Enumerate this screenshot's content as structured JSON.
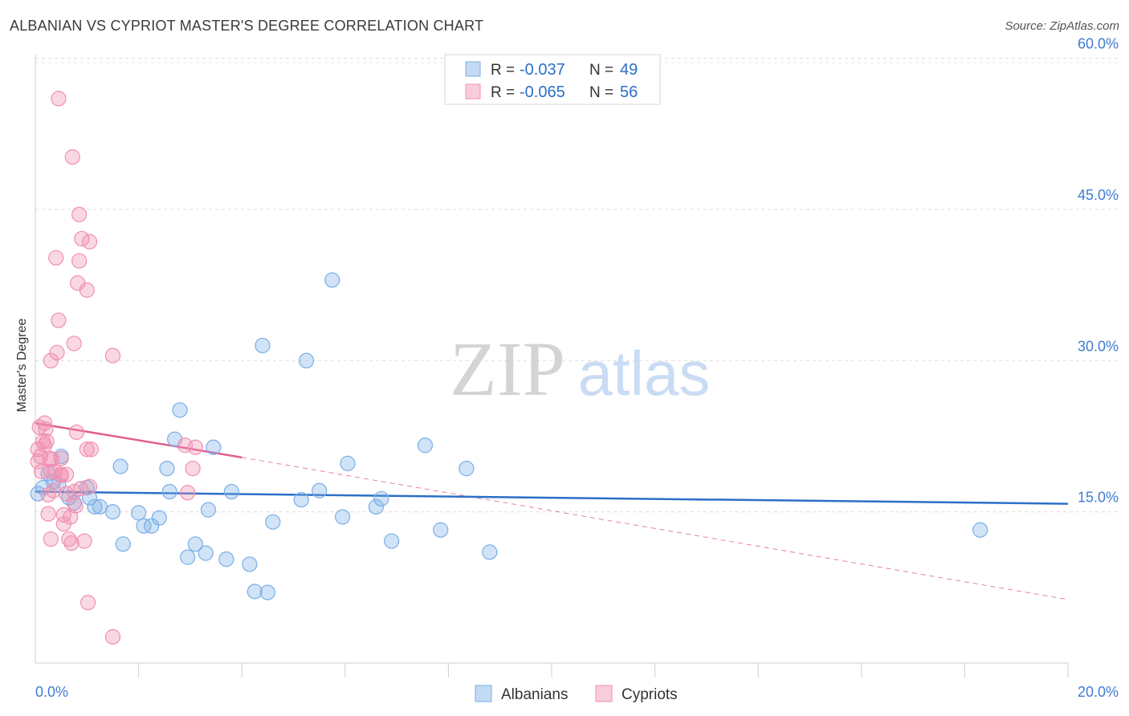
{
  "title": "ALBANIAN VS CYPRIOT MASTER'S DEGREE CORRELATION CHART",
  "source": "Source: ZipAtlas.com",
  "watermark": {
    "zip": "ZIP",
    "atlas": "atlas"
  },
  "chart_data": {
    "type": "scatter",
    "title": "ALBANIAN VS CYPRIOT MASTER'S DEGREE CORRELATION CHART",
    "xlabel": "",
    "ylabel": "Master's Degree",
    "xlim": [
      0,
      20
    ],
    "ylim": [
      0,
      61
    ],
    "x_tick_labels": [
      {
        "value": 0,
        "label": "0.0%"
      },
      {
        "value": 20,
        "label": "20.0%"
      }
    ],
    "y_tick_labels": [
      {
        "value": 15,
        "label": "15.0%"
      },
      {
        "value": 30,
        "label": "30.0%"
      },
      {
        "value": 45,
        "label": "45.0%"
      },
      {
        "value": 60,
        "label": "60.0%"
      }
    ],
    "grid": true,
    "legend_position": "top-center",
    "stats": [
      {
        "r_label": "R =",
        "r": "-0.037",
        "n_label": "N =",
        "n": "49"
      },
      {
        "r_label": "R =",
        "r": "-0.065",
        "n_label": "N =",
        "n": "56"
      }
    ],
    "series": [
      {
        "name": "Albanians",
        "color": "#7aaee6",
        "line_color": "#2b6fc7",
        "trend": {
          "x0": 0.0,
          "y0": 17.0,
          "x1": 20.0,
          "y1": 15.8
        },
        "points": [
          [
            0.05,
            16.8
          ],
          [
            0.15,
            17.4
          ],
          [
            0.25,
            18.8
          ],
          [
            0.35,
            18.0
          ],
          [
            0.45,
            17.7
          ],
          [
            0.5,
            20.5
          ],
          [
            0.65,
            16.4
          ],
          [
            0.75,
            15.9
          ],
          [
            1.0,
            17.4
          ],
          [
            1.05,
            16.4
          ],
          [
            1.15,
            15.5
          ],
          [
            1.25,
            15.5
          ],
          [
            1.5,
            15.0
          ],
          [
            1.65,
            19.5
          ],
          [
            1.7,
            11.8
          ],
          [
            2.0,
            14.9
          ],
          [
            2.1,
            13.6
          ],
          [
            2.25,
            13.6
          ],
          [
            2.4,
            14.4
          ],
          [
            2.55,
            19.3
          ],
          [
            2.6,
            17.0
          ],
          [
            2.7,
            22.2
          ],
          [
            2.8,
            25.1
          ],
          [
            2.95,
            10.5
          ],
          [
            3.1,
            11.8
          ],
          [
            3.3,
            10.9
          ],
          [
            3.35,
            15.2
          ],
          [
            3.45,
            21.4
          ],
          [
            3.7,
            10.3
          ],
          [
            3.8,
            17.0
          ],
          [
            4.15,
            9.8
          ],
          [
            4.25,
            7.1
          ],
          [
            4.5,
            7.0
          ],
          [
            4.4,
            31.5
          ],
          [
            4.6,
            14.0
          ],
          [
            5.15,
            16.2
          ],
          [
            5.25,
            30.0
          ],
          [
            5.5,
            17.1
          ],
          [
            5.75,
            38.0
          ],
          [
            5.95,
            14.5
          ],
          [
            6.05,
            19.8
          ],
          [
            6.6,
            15.5
          ],
          [
            6.7,
            16.3
          ],
          [
            6.9,
            12.1
          ],
          [
            7.55,
            21.6
          ],
          [
            7.85,
            13.2
          ],
          [
            8.35,
            19.3
          ],
          [
            8.8,
            11.0
          ],
          [
            18.3,
            13.2
          ]
        ]
      },
      {
        "name": "Cypriots",
        "color": "#f08fb0",
        "line_color": "#e0608e",
        "trend": {
          "x0": 0.0,
          "y0": 23.8,
          "x1": 4.0,
          "y1": 20.4
        },
        "trend_dashed": {
          "x0": 4.0,
          "y0": 20.4,
          "x1": 20.0,
          "y1": 6.3
        },
        "points": [
          [
            0.05,
            20.0
          ],
          [
            0.05,
            21.2
          ],
          [
            0.08,
            23.4
          ],
          [
            0.1,
            20.5
          ],
          [
            0.12,
            19.0
          ],
          [
            0.15,
            22.0
          ],
          [
            0.18,
            23.8
          ],
          [
            0.18,
            21.6
          ],
          [
            0.2,
            23.2
          ],
          [
            0.22,
            22.0
          ],
          [
            0.25,
            16.7
          ],
          [
            0.25,
            14.8
          ],
          [
            0.28,
            20.3
          ],
          [
            0.3,
            30.0
          ],
          [
            0.3,
            12.3
          ],
          [
            0.32,
            20.2
          ],
          [
            0.35,
            17.1
          ],
          [
            0.38,
            19.0
          ],
          [
            0.4,
            40.2
          ],
          [
            0.42,
            30.8
          ],
          [
            0.45,
            56.0
          ],
          [
            0.45,
            34.0
          ],
          [
            0.5,
            18.6
          ],
          [
            0.5,
            20.3
          ],
          [
            0.5,
            18.7
          ],
          [
            0.55,
            14.7
          ],
          [
            0.55,
            13.8
          ],
          [
            0.6,
            18.7
          ],
          [
            0.65,
            12.3
          ],
          [
            0.68,
            14.5
          ],
          [
            0.7,
            11.9
          ],
          [
            0.72,
            50.2
          ],
          [
            0.75,
            17.0
          ],
          [
            0.75,
            31.7
          ],
          [
            0.78,
            15.6
          ],
          [
            0.8,
            22.9
          ],
          [
            0.82,
            37.7
          ],
          [
            0.85,
            44.5
          ],
          [
            0.85,
            39.9
          ],
          [
            0.88,
            17.3
          ],
          [
            0.9,
            42.1
          ],
          [
            0.95,
            12.1
          ],
          [
            1.0,
            21.2
          ],
          [
            1.0,
            37.0
          ],
          [
            1.02,
            6.0
          ],
          [
            1.05,
            17.5
          ],
          [
            1.08,
            21.2
          ],
          [
            1.05,
            41.8
          ],
          [
            1.5,
            2.6
          ],
          [
            1.5,
            30.5
          ],
          [
            2.9,
            21.6
          ],
          [
            2.95,
            16.9
          ],
          [
            3.05,
            19.3
          ],
          [
            3.1,
            21.4
          ],
          [
            0.3,
            19.0
          ],
          [
            0.6,
            16.8
          ]
        ]
      }
    ]
  }
}
